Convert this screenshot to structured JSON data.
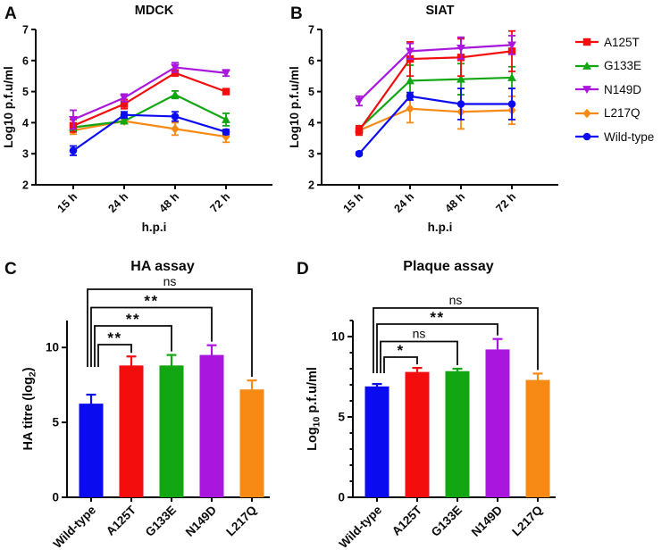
{
  "colors": {
    "A125T": "#F30D0D",
    "G133E": "#12A712",
    "N149D": "#A916DE",
    "L217Q": "#F78A15",
    "Wild-type": "#0B0BF0",
    "axis": "#0a0a0a"
  },
  "legend": {
    "items": [
      {
        "label": "A125T",
        "color": "#F30D0D",
        "marker": "square"
      },
      {
        "label": "G133E",
        "color": "#12A712",
        "marker": "triangle-up"
      },
      {
        "label": "N149D",
        "color": "#A916DE",
        "marker": "triangle-down"
      },
      {
        "label": "L217Q",
        "color": "#F78A15",
        "marker": "diamond"
      },
      {
        "label": "Wild-type",
        "color": "#0B0BF0",
        "marker": "circle"
      }
    ]
  },
  "chart_data": [
    {
      "id": "panel-a",
      "panel_label": "A",
      "type": "line",
      "title": "MDCK",
      "xlabel": "h.p.i",
      "ylabel_segments": [
        {
          "t": "Log10 p.f.u/ml"
        }
      ],
      "categories": [
        "15 h",
        "24 h",
        "48 h",
        "72 h"
      ],
      "ylim": [
        2,
        7
      ],
      "yticks": [
        2,
        3,
        4,
        5,
        6,
        7
      ],
      "series": [
        {
          "name": "L217Q",
          "color": "#F78A15",
          "marker": "diamond",
          "values": [
            3.75,
            4.05,
            3.8,
            3.55
          ],
          "errors": [
            0.12,
            0.08,
            0.2,
            0.18
          ]
        },
        {
          "name": "G133E",
          "color": "#12A712",
          "marker": "triangle-up",
          "values": [
            3.85,
            4.05,
            4.9,
            4.1
          ],
          "errors": [
            0.1,
            0.08,
            0.12,
            0.2
          ]
        },
        {
          "name": "A125T",
          "color": "#F30D0D",
          "marker": "square",
          "values": [
            3.9,
            4.6,
            5.6,
            5.0
          ],
          "errors": [
            0.2,
            0.15,
            0.1,
            0.08
          ]
        },
        {
          "name": "N149D",
          "color": "#A916DE",
          "marker": "triangle-down",
          "values": [
            4.1,
            4.8,
            5.78,
            5.6
          ],
          "errors": [
            0.3,
            0.12,
            0.15,
            0.1
          ]
        },
        {
          "name": "Wild-type",
          "color": "#0B0BF0",
          "marker": "circle",
          "values": [
            3.1,
            4.25,
            4.2,
            3.7
          ],
          "errors": [
            0.15,
            0.1,
            0.15,
            0.08
          ]
        }
      ]
    },
    {
      "id": "panel-b",
      "panel_label": "B",
      "type": "line",
      "title": "SIAT",
      "xlabel": "h.p.i",
      "ylabel_segments": [
        {
          "t": "Log10 p.f.u/ml"
        }
      ],
      "categories": [
        "15 h",
        "24 h",
        "48 h",
        "72 h"
      ],
      "ylim": [
        2,
        7
      ],
      "yticks": [
        2,
        3,
        4,
        5,
        6,
        7
      ],
      "series": [
        {
          "name": "L217Q",
          "color": "#F78A15",
          "marker": "diamond",
          "values": [
            3.75,
            4.45,
            4.35,
            4.4
          ],
          "errors": [
            0.1,
            0.45,
            0.55,
            0.45
          ]
        },
        {
          "name": "G133E",
          "color": "#12A712",
          "marker": "triangle-up",
          "values": [
            3.8,
            5.35,
            5.4,
            5.45
          ],
          "errors": [
            0.1,
            0.5,
            0.5,
            0.35
          ]
        },
        {
          "name": "A125T",
          "color": "#F30D0D",
          "marker": "square",
          "values": [
            3.75,
            6.05,
            6.1,
            6.3
          ],
          "errors": [
            0.15,
            0.55,
            0.6,
            0.65
          ]
        },
        {
          "name": "N149D",
          "color": "#A916DE",
          "marker": "triangle-down",
          "values": [
            4.7,
            6.3,
            6.4,
            6.5
          ],
          "errors": [
            0.15,
            0.25,
            0.35,
            0.3
          ]
        },
        {
          "name": "Wild-type",
          "color": "#0B0BF0",
          "marker": "circle",
          "values": [
            3.0,
            4.85,
            4.6,
            4.6
          ],
          "errors": [
            0.05,
            0.12,
            0.5,
            0.5
          ]
        }
      ]
    },
    {
      "id": "panel-c",
      "panel_label": "C",
      "type": "bar",
      "title": "HA assay",
      "ylabel_segments": [
        {
          "t": "HA titre (log"
        },
        {
          "t": "2",
          "sub": true
        },
        {
          "t": ")"
        }
      ],
      "categories": [
        "Wild-type",
        "A125T",
        "G133E",
        "N149D",
        "L217Q"
      ],
      "values": [
        6.25,
        8.8,
        8.8,
        9.5,
        7.2
      ],
      "errors": [
        0.6,
        0.6,
        0.7,
        0.65,
        0.6
      ],
      "bar_colors": [
        "#0B0BF0",
        "#F30D0D",
        "#12A712",
        "#A916DE",
        "#F78A15"
      ],
      "ylim": [
        0,
        11.8
      ],
      "yticks": [
        0,
        5,
        10
      ],
      "minor_ticks": false,
      "significance": [
        {
          "from": 0,
          "to": 1,
          "label": "**"
        },
        {
          "from": 0,
          "to": 2,
          "label": "**"
        },
        {
          "from": 0,
          "to": 3,
          "label": "**"
        },
        {
          "from": 0,
          "to": 4,
          "label": "ns"
        }
      ]
    },
    {
      "id": "panel-d",
      "panel_label": "D",
      "type": "bar",
      "title": "Plaque assay",
      "ylabel_segments": [
        {
          "t": "Log"
        },
        {
          "t": "10",
          "sub": true
        },
        {
          "t": " p.f.u/ml"
        }
      ],
      "categories": [
        "Wild-type",
        "A125T",
        "G133E",
        "N149D",
        "L217Q"
      ],
      "values": [
        6.9,
        7.8,
        7.85,
        9.2,
        7.3
      ],
      "errors": [
        0.15,
        0.25,
        0.15,
        0.65,
        0.4
      ],
      "bar_colors": [
        "#0B0BF0",
        "#F30D0D",
        "#12A712",
        "#A916DE",
        "#F78A15"
      ],
      "ylim": [
        0,
        11.0
      ],
      "yticks": [
        0,
        5,
        10
      ],
      "minor_ticks": true,
      "significance": [
        {
          "from": 0,
          "to": 1,
          "label": "*"
        },
        {
          "from": 0,
          "to": 2,
          "label": "ns"
        },
        {
          "from": 0,
          "to": 3,
          "label": "**"
        },
        {
          "from": 0,
          "to": 4,
          "label": "ns"
        }
      ]
    }
  ]
}
